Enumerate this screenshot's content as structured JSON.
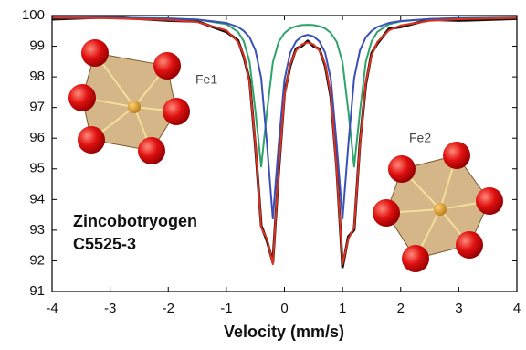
{
  "chart_data": {
    "type": "line",
    "x_label": "Velocity (mm/s)",
    "annotations": [
      "Fe1",
      "Fe2",
      "Zincobotryogen",
      "C5525-3"
    ],
    "x": [
      -4,
      -3,
      -2,
      -1.5,
      -1,
      -0.8,
      -0.7,
      -0.6,
      -0.5,
      -0.4,
      -0.3,
      -0.2,
      -0.1,
      0,
      0.1,
      0.2,
      0.3,
      0.4,
      0.5,
      0.6,
      0.7,
      0.8,
      0.9,
      1.0,
      1.1,
      1.2,
      1.3,
      1.4,
      1.5,
      1.6,
      1.8,
      2,
      2.5,
      3,
      4
    ],
    "series": [
      {
        "color": "#111111",
        "values": [
          99.88,
          99.95,
          99.84,
          99.81,
          99.47,
          99.19,
          98.66,
          97.88,
          95.74,
          93.15,
          92.65,
          91.95,
          94.9,
          97.45,
          98.36,
          98.92,
          99.01,
          99.17,
          99.0,
          98.91,
          98.37,
          97.33,
          95.02,
          91.8,
          92.79,
          93.01,
          95.86,
          97.76,
          98.77,
          99.09,
          99.57,
          99.63,
          99.87,
          99.84,
          99.9
        ]
      },
      {
        "color": "#2ea36a",
        "values": [
          99.94,
          99.93,
          99.91,
          99.87,
          99.72,
          99.47,
          99.16,
          98.49,
          96.88,
          95.07,
          96.87,
          98.47,
          99.14,
          99.43,
          99.58,
          99.65,
          99.69,
          99.7,
          99.69,
          99.65,
          99.58,
          99.43,
          99.14,
          98.47,
          96.87,
          95.07,
          96.88,
          98.49,
          99.16,
          99.47,
          99.72,
          99.81,
          99.89,
          99.92,
          99.94
        ]
      },
      {
        "color": "#3a4fb8",
        "values": [
          99.94,
          99.93,
          99.9,
          99.87,
          99.76,
          99.63,
          99.5,
          99.29,
          98.87,
          97.96,
          95.8,
          93.38,
          95.78,
          97.91,
          98.79,
          99.16,
          99.32,
          99.37,
          99.32,
          99.16,
          98.79,
          97.91,
          95.78,
          93.38,
          95.8,
          97.96,
          98.87,
          99.29,
          99.5,
          99.63,
          99.76,
          99.82,
          99.89,
          99.91,
          99.93
        ]
      },
      {
        "color": "#e0301e",
        "values": [
          99.93,
          99.91,
          99.86,
          99.79,
          99.52,
          99.14,
          98.71,
          97.82,
          95.8,
          93.08,
          92.72,
          91.89,
          94.96,
          97.39,
          98.42,
          98.86,
          99.06,
          99.12,
          99.06,
          98.86,
          98.42,
          97.39,
          94.96,
          91.89,
          92.72,
          93.08,
          95.8,
          97.82,
          98.71,
          99.14,
          99.52,
          99.68,
          99.83,
          99.88,
          99.92
        ]
      }
    ],
    "xlim": [
      -4,
      4
    ],
    "ylim": [
      91,
      100
    ],
    "xticks": [
      -4,
      -3,
      -2,
      -1,
      0,
      1,
      2,
      3,
      4
    ],
    "yticks": [
      91,
      92,
      93,
      94,
      95,
      96,
      97,
      98,
      99,
      100
    ],
    "grid": false
  }
}
